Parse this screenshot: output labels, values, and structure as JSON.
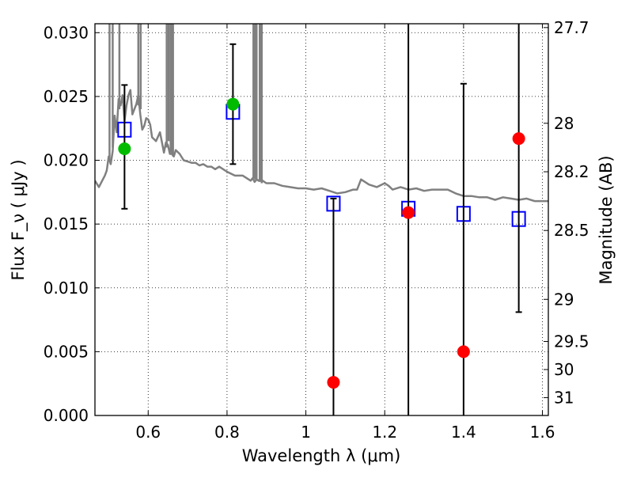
{
  "chart_data": {
    "type": "scatter",
    "xlabel": "Wavelength  λ (μm)",
    "ylabel": "Flux  F_ν  ( μJy )",
    "y2label": "Magnitude (AB)",
    "xlim": [
      0.465,
      1.615
    ],
    "ylim": [
      0.0,
      0.0307
    ],
    "grid": true,
    "grid_style": "dotted",
    "x_ticks": [
      0.6,
      0.8,
      1.0,
      1.2,
      1.4,
      1.6
    ],
    "x_tick_labels": [
      "0.6",
      "0.8",
      "1",
      "1.2",
      "1.4",
      "1.6"
    ],
    "y_ticks": [
      0.0,
      0.005,
      0.01,
      0.015,
      0.02,
      0.025,
      0.03
    ],
    "y_tick_labels": [
      "0.000",
      "0.005",
      "0.010",
      "0.015",
      "0.020",
      "0.025",
      "0.030"
    ],
    "y2_ticks": [
      {
        "label": "27.7",
        "flux": 0.0304
      },
      {
        "label": "28",
        "flux": 0.0229
      },
      {
        "label": "28.2",
        "flux": 0.0191
      },
      {
        "label": "28.5",
        "flux": 0.0145
      },
      {
        "label": "29",
        "flux": 0.0091
      },
      {
        "label": "29.5",
        "flux": 0.0058
      },
      {
        "label": "30",
        "flux": 0.0036
      },
      {
        "label": "31",
        "flux": 0.0014
      }
    ],
    "series": [
      {
        "type": "line",
        "color": "#808080",
        "x": [
          0.465,
          0.475,
          0.485,
          0.49,
          0.495,
          0.5,
          0.505,
          0.51,
          0.515,
          0.52,
          0.525,
          0.53,
          0.535,
          0.54,
          0.545,
          0.55,
          0.555,
          0.56,
          0.565,
          0.57,
          0.575,
          0.58,
          0.585,
          0.59,
          0.595,
          0.6,
          0.605,
          0.61,
          0.62,
          0.63,
          0.64,
          0.645,
          0.65,
          0.655,
          0.66,
          0.665,
          0.67,
          0.68,
          0.69,
          0.7,
          0.71,
          0.72,
          0.73,
          0.74,
          0.75,
          0.76,
          0.77,
          0.78,
          0.8,
          0.82,
          0.84,
          0.86,
          0.865,
          0.87,
          0.875,
          0.88,
          0.885,
          0.89,
          0.895,
          0.9,
          0.92,
          0.94,
          0.96,
          0.98,
          1.0,
          1.02,
          1.04,
          1.06,
          1.08,
          1.1,
          1.12,
          1.13,
          1.14,
          1.16,
          1.18,
          1.2,
          1.21,
          1.22,
          1.24,
          1.26,
          1.28,
          1.3,
          1.32,
          1.34,
          1.36,
          1.38,
          1.4,
          1.42,
          1.44,
          1.46,
          1.48,
          1.5,
          1.52,
          1.54,
          1.56,
          1.58,
          1.6,
          1.615
        ],
        "y": [
          0.0184,
          0.0179,
          0.0185,
          0.0188,
          0.0192,
          0.0203,
          0.0197,
          0.0207,
          0.0235,
          0.0222,
          0.0248,
          0.0243,
          0.0251,
          0.0231,
          0.0243,
          0.0251,
          0.0255,
          0.0236,
          0.024,
          0.0244,
          0.0251,
          0.0236,
          0.0224,
          0.0227,
          0.0233,
          0.0232,
          0.0228,
          0.0218,
          0.0215,
          0.0222,
          0.0206,
          0.0214,
          0.0212,
          0.0205,
          0.0205,
          0.0203,
          0.0208,
          0.0205,
          0.02,
          0.0199,
          0.0198,
          0.0198,
          0.0196,
          0.0197,
          0.0195,
          0.0195,
          0.0193,
          0.0195,
          0.0191,
          0.0188,
          0.0188,
          0.0184,
          0.0186,
          0.0183,
          0.0185,
          0.0184,
          0.0186,
          0.0184,
          0.0183,
          0.0182,
          0.0182,
          0.018,
          0.0179,
          0.0178,
          0.0178,
          0.0177,
          0.0178,
          0.0176,
          0.0174,
          0.0175,
          0.0177,
          0.0177,
          0.0185,
          0.0181,
          0.0179,
          0.0182,
          0.018,
          0.0177,
          0.0179,
          0.0177,
          0.0178,
          0.0176,
          0.0177,
          0.0177,
          0.0177,
          0.0174,
          0.0172,
          0.0172,
          0.0171,
          0.0171,
          0.0169,
          0.0171,
          0.017,
          0.0169,
          0.017,
          0.0168,
          0.0168,
          0.0168
        ]
      },
      {
        "type": "line_spikes",
        "color": "#808080",
        "x": [
          0.502,
          0.51,
          0.527,
          0.575,
          0.581,
          0.647,
          0.652,
          0.657,
          0.66,
          0.663,
          0.867,
          0.871,
          0.875,
          0.883,
          0.888
        ],
        "y_from": [
          0.02,
          0.021,
          0.024,
          0.0243,
          0.024,
          0.021,
          0.0215,
          0.0206,
          0.0205,
          0.0203,
          0.0186,
          0.0185,
          0.0184,
          0.0183,
          0.0182
        ],
        "y_to": [
          0.031,
          0.031,
          0.031,
          0.031,
          0.031,
          0.031,
          0.031,
          0.031,
          0.031,
          0.031,
          0.031,
          0.031,
          0.031,
          0.031,
          0.031
        ]
      },
      {
        "type": "scatter",
        "marker": "open-square",
        "color": "#0000ff",
        "x": [
          0.54,
          0.815,
          1.07,
          1.26,
          1.4,
          1.54
        ],
        "y": [
          0.0224,
          0.0238,
          0.0166,
          0.0162,
          0.0158,
          0.0154
        ]
      },
      {
        "type": "scatter",
        "marker": "filled-circle",
        "color": "#00bb00",
        "x": [
          0.54,
          0.815
        ],
        "y": [
          0.0209,
          0.0244
        ],
        "yerr_low": [
          0.0047,
          0.0047
        ],
        "yerr_high": [
          0.005,
          0.0047
        ]
      },
      {
        "type": "scatter",
        "marker": "filled-circle",
        "color": "#ff0000",
        "x": [
          1.07,
          1.26,
          1.4,
          1.54
        ],
        "y": [
          0.0026,
          0.0159,
          0.005,
          0.0217
        ],
        "yerr_low": [
          0.0026,
          0.0159,
          0.005,
          0.0136
        ],
        "yerr_high": [
          0.0144,
          0.016,
          0.021,
          0.0095
        ]
      }
    ]
  }
}
